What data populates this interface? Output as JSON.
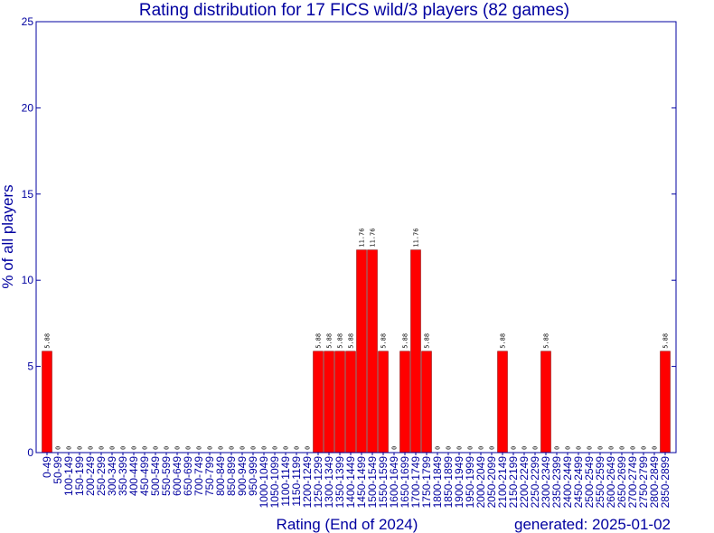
{
  "chart_data": {
    "type": "bar",
    "title": "Rating distribution for 17 FICS wild/3 players (82 games)",
    "xlabel": "Rating (End of 2024)",
    "ylabel": "% of all players",
    "footer": "generated: 2025-01-02",
    "ylim": [
      0,
      25
    ],
    "yticks": [
      "0",
      "5",
      "10",
      "15",
      "20",
      "25"
    ],
    "grid": false,
    "colors": {
      "bar": "#ff0000",
      "bar_edge": "#800000",
      "axis": "#0000a0",
      "text": "#0000a0",
      "data_label": "#000000"
    },
    "categories": [
      "0-49",
      "50-99",
      "100-149",
      "150-199",
      "200-249",
      "250-299",
      "300-349",
      "350-399",
      "400-449",
      "450-499",
      "500-549",
      "550-599",
      "600-649",
      "650-699",
      "700-749",
      "750-799",
      "800-849",
      "850-899",
      "900-949",
      "950-999",
      "1000-1049",
      "1050-1099",
      "1100-1149",
      "1150-1199",
      "1200-1249",
      "1250-1299",
      "1300-1349",
      "1350-1399",
      "1400-1449",
      "1450-1499",
      "1500-1549",
      "1550-1599",
      "1600-1649",
      "1650-1699",
      "1700-1749",
      "1750-1799",
      "1800-1849",
      "1850-1899",
      "1900-1949",
      "1950-1999",
      "2000-2049",
      "2050-2099",
      "2100-2149",
      "2150-2199",
      "2200-2249",
      "2250-2299",
      "2300-2349",
      "2350-2399",
      "2400-2449",
      "2450-2499",
      "2500-2549",
      "2550-2599",
      "2600-2649",
      "2650-2699",
      "2700-2749",
      "2750-2799",
      "2800-2849",
      "2850-2899"
    ],
    "values": [
      5.88,
      0,
      0,
      0,
      0,
      0,
      0,
      0,
      0,
      0,
      0,
      0,
      0,
      0,
      0,
      0,
      0,
      0,
      0,
      0,
      0,
      0,
      0,
      0,
      0,
      5.88,
      5.88,
      5.88,
      5.88,
      11.76,
      11.76,
      5.88,
      0,
      5.88,
      11.76,
      5.88,
      0,
      0,
      0,
      0,
      0,
      0,
      5.88,
      0,
      0,
      0,
      5.88,
      0,
      0,
      0,
      0,
      0,
      0,
      0,
      0,
      0,
      0,
      5.88
    ],
    "data_labels": [
      "5.88",
      "0",
      "0",
      "0",
      "0",
      "0",
      "0",
      "0",
      "0",
      "0",
      "0",
      "0",
      "0",
      "0",
      "0",
      "0",
      "0",
      "0",
      "0",
      "0",
      "0",
      "0",
      "0",
      "0",
      "0",
      "5.88",
      "5.88",
      "5.88",
      "5.88",
      "11.76",
      "11.76",
      "5.88",
      "0",
      "5.88",
      "11.76",
      "5.88",
      "0",
      "0",
      "0",
      "0",
      "0",
      "0",
      "5.88",
      "0",
      "0",
      "0",
      "5.88",
      "0",
      "0",
      "0",
      "0",
      "0",
      "0",
      "0",
      "0",
      "0",
      "0",
      "5.88"
    ]
  }
}
